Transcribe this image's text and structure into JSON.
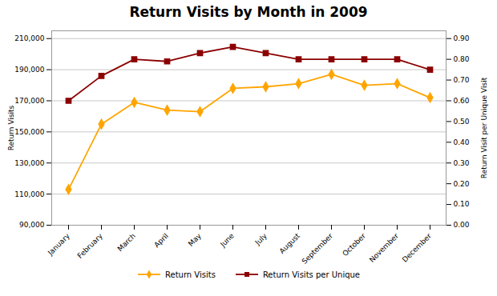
{
  "chart_data": {
    "type": "line",
    "title": "Return Visits by Month in 2009",
    "categories": [
      "January",
      "February",
      "March",
      "April",
      "May",
      "June",
      "July",
      "August",
      "September",
      "October",
      "November",
      "December"
    ],
    "series": [
      {
        "name": "Return Visits",
        "color": "#FFA500",
        "marker": "diamond",
        "axis": "y",
        "values": [
          113000,
          155000,
          169000,
          164000,
          163000,
          178000,
          179000,
          181000,
          187000,
          180000,
          181000,
          172000
        ]
      },
      {
        "name": "Return Visits per Unique",
        "color": "#8B0000",
        "marker": "square",
        "axis": "y2",
        "values": [
          0.6,
          0.72,
          0.8,
          0.79,
          0.83,
          0.86,
          0.83,
          0.8,
          0.8,
          0.8,
          0.8,
          0.75
        ]
      }
    ],
    "y_label": "Return Visits",
    "y2_label": "Return Visit per Unique Visit",
    "ylim": [
      90000,
      215000
    ],
    "yticks": [
      {
        "value": 90000,
        "label": "90,000"
      },
      {
        "value": 110000,
        "label": "110,000"
      },
      {
        "value": 130000,
        "label": "130,000"
      },
      {
        "value": 150000,
        "label": "150,000"
      },
      {
        "value": 170000,
        "label": "170,000"
      },
      {
        "value": 190000,
        "label": "190,000"
      },
      {
        "value": 210000,
        "label": "210,000"
      }
    ],
    "y2lim": [
      0.0,
      0.9375
    ],
    "y2ticks": [
      {
        "value": 0,
        "label": "0.00"
      },
      {
        "value": 0.1,
        "label": "0.10"
      },
      {
        "value": 0.2,
        "label": "0.20"
      },
      {
        "value": 0.3,
        "label": "0.30"
      },
      {
        "value": 0.4,
        "label": "0.40"
      },
      {
        "value": 0.5,
        "label": "0.50"
      },
      {
        "value": 0.6,
        "label": "0.60"
      },
      {
        "value": 0.7,
        "label": "0.70"
      },
      {
        "value": 0.8,
        "label": "0.80"
      },
      {
        "value": 0.9,
        "label": "0.90"
      }
    ],
    "grid": true,
    "legend": "bottom"
  }
}
